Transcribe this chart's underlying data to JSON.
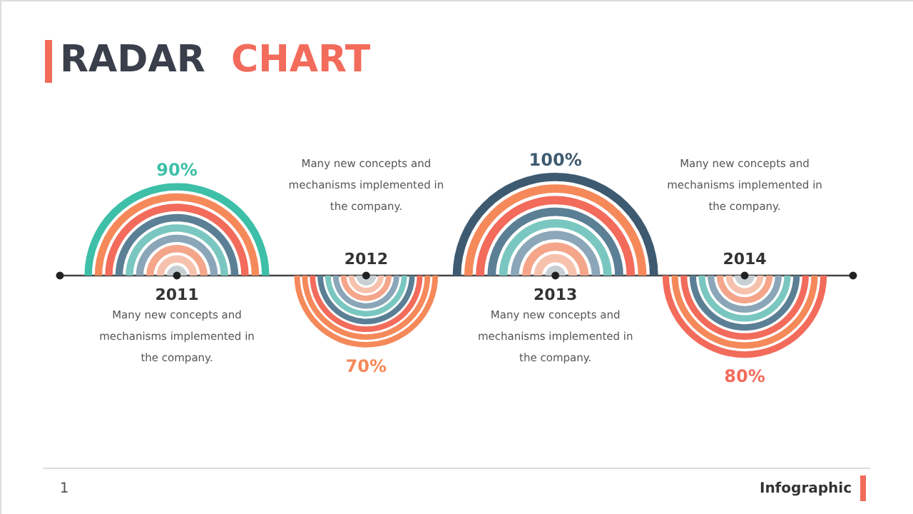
{
  "chart_data": {
    "type": "other",
    "title": "RADAR CHART",
    "categories": [
      "2011",
      "2012",
      "2013",
      "2014"
    ],
    "values": [
      90,
      70,
      100,
      80
    ],
    "value_labels": [
      "90%",
      "70%",
      "100%",
      "80%"
    ],
    "colors": [
      "#3dbfa8",
      "#f5895a",
      "#3d5a70",
      "#f26b5b"
    ],
    "annotations": [
      "Many new concepts and mechanisms implemented in the company.",
      "Many new concepts and mechanisms implemented in the company.",
      "Many new concepts and mechanisms implemented in the company.",
      "Many new concepts and mechanisms implemented in the company.",
      "1",
      "Infographic"
    ]
  }
}
